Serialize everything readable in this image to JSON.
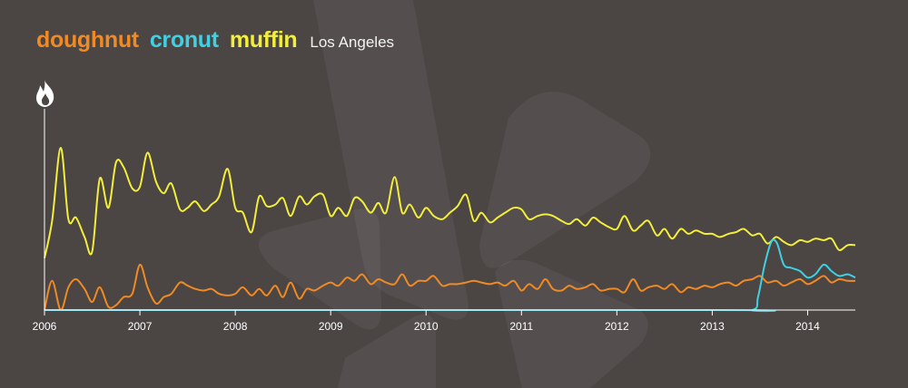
{
  "legend": {
    "terms": [
      {
        "label": "doughnut",
        "color": "#ef8a25"
      },
      {
        "label": "cronut",
        "color": "#3fd1e3"
      },
      {
        "label": "muffin",
        "color": "#f2ee3b"
      }
    ],
    "location": "Los Angeles"
  },
  "icons": {
    "popularity": "flame-icon",
    "background": "yelp-burst-logo"
  },
  "colors": {
    "background": "#4b4544",
    "axis": "#ffffff"
  },
  "chart_data": {
    "type": "line",
    "title": "",
    "xlabel": "",
    "ylabel": "",
    "y_scale": "relative, no tick labels",
    "xlim": [
      2006.0,
      2014.5
    ],
    "ylim": [
      0,
      100
    ],
    "grid": false,
    "x_ticks": [
      "2006",
      "2007",
      "2008",
      "2009",
      "2010",
      "2011",
      "2012",
      "2013",
      "2014"
    ],
    "series": [
      {
        "name": "muffin",
        "color": "#f2ee3b",
        "points": [
          [
            2006.0,
            32
          ],
          [
            2006.08,
            55
          ],
          [
            2006.17,
            100
          ],
          [
            2006.25,
            56
          ],
          [
            2006.33,
            57
          ],
          [
            2006.42,
            45
          ],
          [
            2006.5,
            36
          ],
          [
            2006.58,
            81
          ],
          [
            2006.67,
            63
          ],
          [
            2006.75,
            91
          ],
          [
            2006.83,
            88
          ],
          [
            2006.92,
            75
          ],
          [
            2007.0,
            76
          ],
          [
            2007.08,
            97
          ],
          [
            2007.17,
            79
          ],
          [
            2007.25,
            72
          ],
          [
            2007.33,
            78
          ],
          [
            2007.42,
            62
          ],
          [
            2007.5,
            63
          ],
          [
            2007.58,
            67
          ],
          [
            2007.67,
            61
          ],
          [
            2007.75,
            65
          ],
          [
            2007.83,
            70
          ],
          [
            2007.92,
            87
          ],
          [
            2008.0,
            63
          ],
          [
            2008.08,
            60
          ],
          [
            2008.17,
            48
          ],
          [
            2008.25,
            70
          ],
          [
            2008.33,
            64
          ],
          [
            2008.42,
            65
          ],
          [
            2008.5,
            69
          ],
          [
            2008.58,
            58
          ],
          [
            2008.67,
            70
          ],
          [
            2008.75,
            65
          ],
          [
            2008.83,
            70
          ],
          [
            2008.92,
            71
          ],
          [
            2009.0,
            58
          ],
          [
            2009.08,
            63
          ],
          [
            2009.17,
            58
          ],
          [
            2009.25,
            69
          ],
          [
            2009.33,
            67
          ],
          [
            2009.42,
            60
          ],
          [
            2009.5,
            66
          ],
          [
            2009.58,
            60
          ],
          [
            2009.67,
            82
          ],
          [
            2009.75,
            60
          ],
          [
            2009.83,
            65
          ],
          [
            2009.92,
            57
          ],
          [
            2010.0,
            63
          ],
          [
            2010.08,
            58
          ],
          [
            2010.17,
            56
          ],
          [
            2010.25,
            60
          ],
          [
            2010.33,
            64
          ],
          [
            2010.42,
            71
          ],
          [
            2010.5,
            55
          ],
          [
            2010.58,
            60
          ],
          [
            2010.67,
            54
          ],
          [
            2010.75,
            57
          ],
          [
            2010.83,
            60
          ],
          [
            2010.92,
            63
          ],
          [
            2011.0,
            62
          ],
          [
            2011.08,
            56
          ],
          [
            2011.17,
            58
          ],
          [
            2011.25,
            59
          ],
          [
            2011.33,
            58
          ],
          [
            2011.42,
            55
          ],
          [
            2011.5,
            53
          ],
          [
            2011.58,
            56
          ],
          [
            2011.67,
            52
          ],
          [
            2011.75,
            57
          ],
          [
            2011.83,
            54
          ],
          [
            2011.92,
            51
          ],
          [
            2012.0,
            50
          ],
          [
            2012.08,
            58
          ],
          [
            2012.17,
            49
          ],
          [
            2012.25,
            52
          ],
          [
            2012.33,
            55
          ],
          [
            2012.42,
            46
          ],
          [
            2012.5,
            50
          ],
          [
            2012.58,
            44
          ],
          [
            2012.67,
            50
          ],
          [
            2012.75,
            47
          ],
          [
            2012.83,
            49
          ],
          [
            2012.92,
            47
          ],
          [
            2013.0,
            47
          ],
          [
            2013.08,
            45
          ],
          [
            2013.17,
            47
          ],
          [
            2013.25,
            48
          ],
          [
            2013.33,
            50
          ],
          [
            2013.42,
            46
          ],
          [
            2013.5,
            47
          ],
          [
            2013.58,
            41
          ],
          [
            2013.67,
            45
          ],
          [
            2013.75,
            42
          ],
          [
            2013.83,
            40
          ],
          [
            2013.92,
            43
          ],
          [
            2014.0,
            42
          ],
          [
            2014.08,
            44
          ],
          [
            2014.17,
            43
          ],
          [
            2014.25,
            44
          ],
          [
            2014.33,
            37
          ],
          [
            2014.42,
            40
          ],
          [
            2014.5,
            40
          ]
        ]
      },
      {
        "name": "doughnut",
        "color": "#ef8a25",
        "points": [
          [
            2006.0,
            0
          ],
          [
            2006.08,
            18
          ],
          [
            2006.17,
            0
          ],
          [
            2006.25,
            14
          ],
          [
            2006.33,
            19
          ],
          [
            2006.42,
            13
          ],
          [
            2006.5,
            5
          ],
          [
            2006.58,
            14
          ],
          [
            2006.67,
            2
          ],
          [
            2006.75,
            3
          ],
          [
            2006.83,
            8
          ],
          [
            2006.92,
            10
          ],
          [
            2007.0,
            28
          ],
          [
            2007.08,
            14
          ],
          [
            2007.17,
            4
          ],
          [
            2007.25,
            8
          ],
          [
            2007.33,
            10
          ],
          [
            2007.42,
            17
          ],
          [
            2007.5,
            15
          ],
          [
            2007.58,
            13
          ],
          [
            2007.67,
            12
          ],
          [
            2007.75,
            13
          ],
          [
            2007.83,
            10
          ],
          [
            2007.92,
            9
          ],
          [
            2008.0,
            10
          ],
          [
            2008.08,
            14
          ],
          [
            2008.17,
            9
          ],
          [
            2008.25,
            13
          ],
          [
            2008.33,
            9
          ],
          [
            2008.42,
            15
          ],
          [
            2008.5,
            8
          ],
          [
            2008.58,
            17
          ],
          [
            2008.67,
            7
          ],
          [
            2008.75,
            13
          ],
          [
            2008.83,
            12
          ],
          [
            2008.92,
            15
          ],
          [
            2009.0,
            17
          ],
          [
            2009.08,
            15
          ],
          [
            2009.17,
            20
          ],
          [
            2009.25,
            18
          ],
          [
            2009.33,
            22
          ],
          [
            2009.42,
            16
          ],
          [
            2009.5,
            19
          ],
          [
            2009.58,
            17
          ],
          [
            2009.67,
            16
          ],
          [
            2009.75,
            22
          ],
          [
            2009.83,
            15
          ],
          [
            2009.92,
            18
          ],
          [
            2010.0,
            18
          ],
          [
            2010.08,
            21
          ],
          [
            2010.17,
            15
          ],
          [
            2010.25,
            16
          ],
          [
            2010.33,
            16
          ],
          [
            2010.42,
            17
          ],
          [
            2010.5,
            18
          ],
          [
            2010.58,
            17
          ],
          [
            2010.67,
            16
          ],
          [
            2010.75,
            17
          ],
          [
            2010.83,
            15
          ],
          [
            2010.92,
            18
          ],
          [
            2011.0,
            12
          ],
          [
            2011.08,
            16
          ],
          [
            2011.17,
            13
          ],
          [
            2011.25,
            19
          ],
          [
            2011.33,
            13
          ],
          [
            2011.42,
            12
          ],
          [
            2011.5,
            15
          ],
          [
            2011.58,
            13
          ],
          [
            2011.67,
            14
          ],
          [
            2011.75,
            16
          ],
          [
            2011.83,
            12
          ],
          [
            2011.92,
            13
          ],
          [
            2012.0,
            13
          ],
          [
            2012.08,
            11
          ],
          [
            2012.17,
            19
          ],
          [
            2012.25,
            12
          ],
          [
            2012.33,
            14
          ],
          [
            2012.42,
            15
          ],
          [
            2012.5,
            13
          ],
          [
            2012.58,
            16
          ],
          [
            2012.67,
            11
          ],
          [
            2012.75,
            14
          ],
          [
            2012.83,
            13
          ],
          [
            2012.92,
            15
          ],
          [
            2013.0,
            14
          ],
          [
            2013.08,
            16
          ],
          [
            2013.17,
            17
          ],
          [
            2013.25,
            15
          ],
          [
            2013.33,
            18
          ],
          [
            2013.42,
            19
          ],
          [
            2013.5,
            21
          ],
          [
            2013.58,
            17
          ],
          [
            2013.67,
            18
          ],
          [
            2013.75,
            15
          ],
          [
            2013.83,
            17
          ],
          [
            2013.92,
            19
          ],
          [
            2014.0,
            16
          ],
          [
            2014.08,
            18
          ],
          [
            2014.17,
            21
          ],
          [
            2014.25,
            17
          ],
          [
            2014.33,
            19
          ],
          [
            2014.42,
            18
          ],
          [
            2014.5,
            18
          ]
        ]
      },
      {
        "name": "cronut",
        "color": "#3fd1e3",
        "points": [
          [
            2006.0,
            0
          ],
          [
            2013.0,
            0
          ],
          [
            2013.42,
            0
          ],
          [
            2013.48,
            8
          ],
          [
            2013.55,
            28
          ],
          [
            2013.62,
            42
          ],
          [
            2013.68,
            41
          ],
          [
            2013.75,
            28
          ],
          [
            2013.83,
            26
          ],
          [
            2013.92,
            24
          ],
          [
            2014.0,
            20
          ],
          [
            2014.08,
            22
          ],
          [
            2014.17,
            28
          ],
          [
            2014.25,
            24
          ],
          [
            2014.33,
            21
          ],
          [
            2014.42,
            22
          ],
          [
            2014.5,
            20
          ]
        ]
      }
    ]
  }
}
